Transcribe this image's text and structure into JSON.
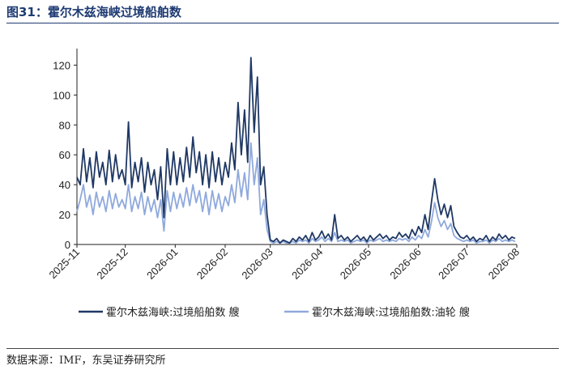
{
  "figure": {
    "title": "图31：霍尔木兹海峡过境船舶数",
    "source": "数据来源：IMF，东吴证券研究所"
  },
  "chart_data": {
    "type": "line",
    "ylim": [
      0,
      130
    ],
    "yticks": [
      0,
      20,
      40,
      60,
      80,
      100,
      120
    ],
    "xticks": [
      "2025-11",
      "2025-12",
      "2026-01",
      "2026-02",
      "2026-03",
      "2026-04",
      "2026-05",
      "2026-06",
      "2026-07",
      "2026-08"
    ],
    "xlim": [
      "2025-11-01",
      "2026-08-01"
    ],
    "grid": false,
    "legend_position": "bottom",
    "series": [
      {
        "name": "霍尔木兹海峡:过境船舶数 艘",
        "color": "#1f3864",
        "points": [
          [
            "2025-11-01",
            45
          ],
          [
            "2025-11-03",
            40
          ],
          [
            "2025-11-05",
            64
          ],
          [
            "2025-11-07",
            42
          ],
          [
            "2025-11-09",
            58
          ],
          [
            "2025-11-11",
            38
          ],
          [
            "2025-11-13",
            62
          ],
          [
            "2025-11-15",
            45
          ],
          [
            "2025-11-17",
            55
          ],
          [
            "2025-11-19",
            40
          ],
          [
            "2025-11-21",
            63
          ],
          [
            "2025-11-23",
            42
          ],
          [
            "2025-11-25",
            60
          ],
          [
            "2025-11-27",
            44
          ],
          [
            "2025-11-29",
            50
          ],
          [
            "2025-12-01",
            40
          ],
          [
            "2025-12-03",
            82
          ],
          [
            "2025-12-05",
            38
          ],
          [
            "2025-12-07",
            55
          ],
          [
            "2025-12-09",
            42
          ],
          [
            "2025-12-11",
            58
          ],
          [
            "2025-12-13",
            35
          ],
          [
            "2025-12-15",
            55
          ],
          [
            "2025-12-17",
            40
          ],
          [
            "2025-12-19",
            50
          ],
          [
            "2025-12-21",
            30
          ],
          [
            "2025-12-23",
            52
          ],
          [
            "2025-12-25",
            18
          ],
          [
            "2025-12-27",
            64
          ],
          [
            "2025-12-29",
            40
          ],
          [
            "2025-12-31",
            62
          ],
          [
            "2026-01-02",
            40
          ],
          [
            "2026-01-04",
            58
          ],
          [
            "2026-01-06",
            42
          ],
          [
            "2026-01-08",
            65
          ],
          [
            "2026-01-10",
            45
          ],
          [
            "2026-01-12",
            72
          ],
          [
            "2026-01-14",
            48
          ],
          [
            "2026-01-16",
            62
          ],
          [
            "2026-01-18",
            40
          ],
          [
            "2026-01-20",
            60
          ],
          [
            "2026-01-22",
            38
          ],
          [
            "2026-01-24",
            62
          ],
          [
            "2026-01-26",
            42
          ],
          [
            "2026-01-28",
            58
          ],
          [
            "2026-01-30",
            40
          ],
          [
            "2026-02-01",
            55
          ],
          [
            "2026-02-03",
            45
          ],
          [
            "2026-02-05",
            68
          ],
          [
            "2026-02-07",
            50
          ],
          [
            "2026-02-09",
            95
          ],
          [
            "2026-02-11",
            60
          ],
          [
            "2026-02-13",
            90
          ],
          [
            "2026-02-15",
            55
          ],
          [
            "2026-02-17",
            125
          ],
          [
            "2026-02-19",
            75
          ],
          [
            "2026-02-21",
            112
          ],
          [
            "2026-02-23",
            40
          ],
          [
            "2026-02-25",
            52
          ],
          [
            "2026-02-27",
            20
          ],
          [
            "2026-03-01",
            3
          ],
          [
            "2026-03-03",
            2
          ],
          [
            "2026-03-05",
            4
          ],
          [
            "2026-03-07",
            1
          ],
          [
            "2026-03-09",
            3
          ],
          [
            "2026-03-11",
            2
          ],
          [
            "2026-03-13",
            1
          ],
          [
            "2026-03-15",
            4
          ],
          [
            "2026-03-17",
            2
          ],
          [
            "2026-03-19",
            5
          ],
          [
            "2026-03-21",
            3
          ],
          [
            "2026-03-23",
            6
          ],
          [
            "2026-03-25",
            2
          ],
          [
            "2026-03-27",
            8
          ],
          [
            "2026-03-29",
            3
          ],
          [
            "2026-03-31",
            5
          ],
          [
            "2026-04-02",
            9
          ],
          [
            "2026-04-04",
            4
          ],
          [
            "2026-04-06",
            7
          ],
          [
            "2026-04-08",
            3
          ],
          [
            "2026-04-10",
            20
          ],
          [
            "2026-04-12",
            4
          ],
          [
            "2026-04-14",
            6
          ],
          [
            "2026-04-16",
            3
          ],
          [
            "2026-04-18",
            5
          ],
          [
            "2026-04-20",
            2
          ],
          [
            "2026-04-22",
            4
          ],
          [
            "2026-04-24",
            6
          ],
          [
            "2026-04-26",
            3
          ],
          [
            "2026-04-28",
            5
          ],
          [
            "2026-04-30",
            2
          ],
          [
            "2026-05-02",
            6
          ],
          [
            "2026-05-04",
            3
          ],
          [
            "2026-05-06",
            5
          ],
          [
            "2026-05-08",
            7
          ],
          [
            "2026-05-10",
            4
          ],
          [
            "2026-05-12",
            6
          ],
          [
            "2026-05-14",
            3
          ],
          [
            "2026-05-16",
            5
          ],
          [
            "2026-05-18",
            4
          ],
          [
            "2026-05-20",
            8
          ],
          [
            "2026-05-22",
            5
          ],
          [
            "2026-05-24",
            7
          ],
          [
            "2026-05-26",
            4
          ],
          [
            "2026-05-28",
            10
          ],
          [
            "2026-05-30",
            6
          ],
          [
            "2026-06-01",
            12
          ],
          [
            "2026-06-03",
            8
          ],
          [
            "2026-06-05",
            20
          ],
          [
            "2026-06-07",
            10
          ],
          [
            "2026-06-09",
            28
          ],
          [
            "2026-06-11",
            44
          ],
          [
            "2026-06-13",
            30
          ],
          [
            "2026-06-15",
            20
          ],
          [
            "2026-06-17",
            27
          ],
          [
            "2026-06-19",
            18
          ],
          [
            "2026-06-21",
            26
          ],
          [
            "2026-06-23",
            12
          ],
          [
            "2026-06-25",
            8
          ],
          [
            "2026-06-27",
            5
          ],
          [
            "2026-06-29",
            4
          ],
          [
            "2026-07-01",
            6
          ],
          [
            "2026-07-03",
            3
          ],
          [
            "2026-07-05",
            5
          ],
          [
            "2026-07-07",
            2
          ],
          [
            "2026-07-09",
            4
          ],
          [
            "2026-07-11",
            3
          ],
          [
            "2026-07-13",
            6
          ],
          [
            "2026-07-15",
            2
          ],
          [
            "2026-07-17",
            5
          ],
          [
            "2026-07-19",
            3
          ],
          [
            "2026-07-21",
            7
          ],
          [
            "2026-07-23",
            4
          ],
          [
            "2026-07-25",
            6
          ],
          [
            "2026-07-27",
            3
          ],
          [
            "2026-07-29",
            5
          ],
          [
            "2026-07-31",
            4
          ]
        ]
      },
      {
        "name": "霍尔木兹海峡:过境船舶数:油轮 艘",
        "color": "#8fa9dc",
        "points": [
          [
            "2025-11-01",
            22
          ],
          [
            "2025-11-03",
            30
          ],
          [
            "2025-11-05",
            40
          ],
          [
            "2025-11-07",
            25
          ],
          [
            "2025-11-09",
            33
          ],
          [
            "2025-11-11",
            20
          ],
          [
            "2025-11-13",
            35
          ],
          [
            "2025-11-15",
            25
          ],
          [
            "2025-11-17",
            32
          ],
          [
            "2025-11-19",
            22
          ],
          [
            "2025-11-21",
            36
          ],
          [
            "2025-11-23",
            24
          ],
          [
            "2025-11-25",
            34
          ],
          [
            "2025-11-27",
            25
          ],
          [
            "2025-11-29",
            30
          ],
          [
            "2025-12-01",
            24
          ],
          [
            "2025-12-03",
            40
          ],
          [
            "2025-12-05",
            22
          ],
          [
            "2025-12-07",
            32
          ],
          [
            "2025-12-09",
            24
          ],
          [
            "2025-12-11",
            35
          ],
          [
            "2025-12-13",
            20
          ],
          [
            "2025-12-15",
            32
          ],
          [
            "2025-12-17",
            22
          ],
          [
            "2025-12-19",
            30
          ],
          [
            "2025-12-21",
            18
          ],
          [
            "2025-12-23",
            30
          ],
          [
            "2025-12-25",
            9
          ],
          [
            "2025-12-27",
            36
          ],
          [
            "2025-12-29",
            22
          ],
          [
            "2025-12-31",
            35
          ],
          [
            "2026-01-02",
            24
          ],
          [
            "2026-01-04",
            34
          ],
          [
            "2026-01-06",
            25
          ],
          [
            "2026-01-08",
            38
          ],
          [
            "2026-01-10",
            26
          ],
          [
            "2026-01-12",
            40
          ],
          [
            "2026-01-14",
            28
          ],
          [
            "2026-01-16",
            36
          ],
          [
            "2026-01-18",
            22
          ],
          [
            "2026-01-20",
            35
          ],
          [
            "2026-01-22",
            20
          ],
          [
            "2026-01-24",
            36
          ],
          [
            "2026-01-26",
            24
          ],
          [
            "2026-01-28",
            34
          ],
          [
            "2026-01-30",
            22
          ],
          [
            "2026-02-01",
            32
          ],
          [
            "2026-02-03",
            26
          ],
          [
            "2026-02-05",
            40
          ],
          [
            "2026-02-07",
            28
          ],
          [
            "2026-02-09",
            50
          ],
          [
            "2026-02-11",
            32
          ],
          [
            "2026-02-13",
            48
          ],
          [
            "2026-02-15",
            30
          ],
          [
            "2026-02-17",
            68
          ],
          [
            "2026-02-19",
            40
          ],
          [
            "2026-02-21",
            58
          ],
          [
            "2026-02-23",
            20
          ],
          [
            "2026-02-25",
            30
          ],
          [
            "2026-02-27",
            10
          ],
          [
            "2026-03-01",
            2
          ],
          [
            "2026-03-03",
            1
          ],
          [
            "2026-03-05",
            2
          ],
          [
            "2026-03-07",
            1
          ],
          [
            "2026-03-09",
            2
          ],
          [
            "2026-03-11",
            1
          ],
          [
            "2026-03-13",
            1
          ],
          [
            "2026-03-15",
            2
          ],
          [
            "2026-03-17",
            1
          ],
          [
            "2026-03-19",
            3
          ],
          [
            "2026-03-21",
            2
          ],
          [
            "2026-03-23",
            3
          ],
          [
            "2026-03-25",
            1
          ],
          [
            "2026-03-27",
            4
          ],
          [
            "2026-03-29",
            2
          ],
          [
            "2026-03-31",
            3
          ],
          [
            "2026-04-02",
            5
          ],
          [
            "2026-04-04",
            2
          ],
          [
            "2026-04-06",
            4
          ],
          [
            "2026-04-08",
            2
          ],
          [
            "2026-04-10",
            8
          ],
          [
            "2026-04-12",
            2
          ],
          [
            "2026-04-14",
            3
          ],
          [
            "2026-04-16",
            2
          ],
          [
            "2026-04-18",
            3
          ],
          [
            "2026-04-20",
            1
          ],
          [
            "2026-04-22",
            2
          ],
          [
            "2026-04-24",
            3
          ],
          [
            "2026-04-26",
            2
          ],
          [
            "2026-04-28",
            3
          ],
          [
            "2026-04-30",
            1
          ],
          [
            "2026-05-02",
            3
          ],
          [
            "2026-05-04",
            2
          ],
          [
            "2026-05-06",
            3
          ],
          [
            "2026-05-08",
            4
          ],
          [
            "2026-05-10",
            2
          ],
          [
            "2026-05-12",
            3
          ],
          [
            "2026-05-14",
            2
          ],
          [
            "2026-05-16",
            3
          ],
          [
            "2026-05-18",
            2
          ],
          [
            "2026-05-20",
            4
          ],
          [
            "2026-05-22",
            3
          ],
          [
            "2026-05-24",
            4
          ],
          [
            "2026-05-26",
            2
          ],
          [
            "2026-05-28",
            5
          ],
          [
            "2026-05-30",
            3
          ],
          [
            "2026-06-01",
            6
          ],
          [
            "2026-06-03",
            4
          ],
          [
            "2026-06-05",
            10
          ],
          [
            "2026-06-07",
            5
          ],
          [
            "2026-06-09",
            15
          ],
          [
            "2026-06-11",
            28
          ],
          [
            "2026-06-13",
            18
          ],
          [
            "2026-06-15",
            12
          ],
          [
            "2026-06-17",
            16
          ],
          [
            "2026-06-19",
            10
          ],
          [
            "2026-06-21",
            14
          ],
          [
            "2026-06-23",
            6
          ],
          [
            "2026-06-25",
            4
          ],
          [
            "2026-06-27",
            3
          ],
          [
            "2026-06-29",
            2
          ],
          [
            "2026-07-01",
            3
          ],
          [
            "2026-07-03",
            2
          ],
          [
            "2026-07-05",
            3
          ],
          [
            "2026-07-07",
            1
          ],
          [
            "2026-07-09",
            2
          ],
          [
            "2026-07-11",
            2
          ],
          [
            "2026-07-13",
            3
          ],
          [
            "2026-07-15",
            1
          ],
          [
            "2026-07-17",
            3
          ],
          [
            "2026-07-19",
            2
          ],
          [
            "2026-07-21",
            4
          ],
          [
            "2026-07-23",
            2
          ],
          [
            "2026-07-25",
            3
          ],
          [
            "2026-07-27",
            2
          ],
          [
            "2026-07-29",
            3
          ],
          [
            "2026-07-31",
            2
          ]
        ]
      }
    ]
  }
}
